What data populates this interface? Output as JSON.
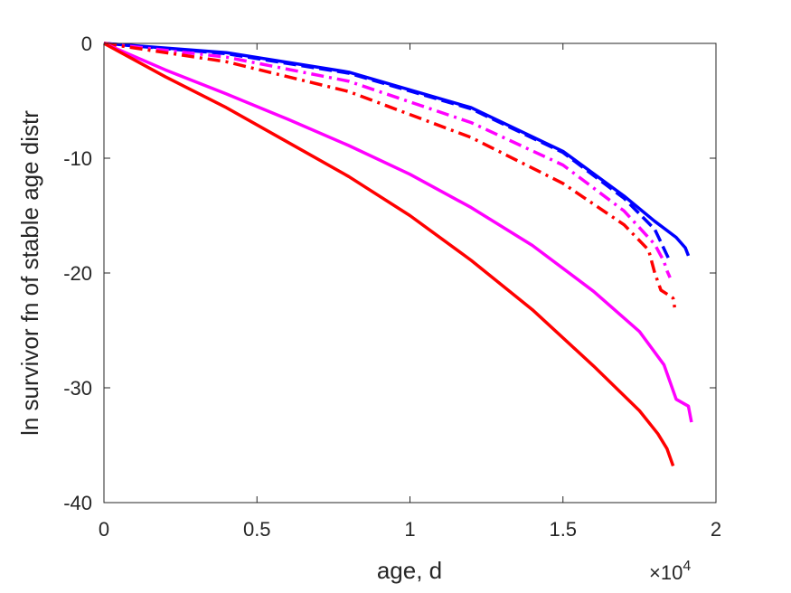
{
  "chart_data": {
    "type": "line",
    "title": "",
    "xlabel": "age, d",
    "ylabel": "ln survivor fn of stable age distr",
    "xlim": [
      0,
      20000
    ],
    "ylim": [
      -40,
      0
    ],
    "x_exponent_label": {
      "base": "×10",
      "exp": "4"
    },
    "x_ticks": [
      {
        "value": 0,
        "label": "0"
      },
      {
        "value": 5000,
        "label": "0.5"
      },
      {
        "value": 10000,
        "label": "1"
      },
      {
        "value": 15000,
        "label": "1.5"
      },
      {
        "value": 20000,
        "label": "2"
      }
    ],
    "y_ticks": [
      {
        "value": 0,
        "label": "0"
      },
      {
        "value": -10,
        "label": "-10"
      },
      {
        "value": -20,
        "label": "-20"
      },
      {
        "value": -30,
        "label": "-30"
      },
      {
        "value": -40,
        "label": "-40"
      }
    ],
    "grid": false,
    "series": [
      {
        "color": "#0000ff",
        "style": "dashed",
        "x": [
          0,
          4000,
          8000,
          12000,
          15000,
          17000,
          18000,
          18500
        ],
        "y": [
          0,
          -0.9,
          -2.6,
          -5.7,
          -9.5,
          -13.5,
          -16.2,
          -19
        ]
      },
      {
        "color": "#0000ff",
        "style": "solid",
        "x": [
          0,
          4000,
          8000,
          12000,
          15000,
          17000,
          18000,
          18700,
          19000,
          19100
        ],
        "y": [
          0,
          -0.8,
          -2.5,
          -5.6,
          -9.4,
          -13.3,
          -15.5,
          -16.9,
          -17.8,
          -18.5
        ]
      },
      {
        "color": "#ff00ff",
        "style": "dashdot",
        "x": [
          0,
          4000,
          8000,
          12000,
          15000,
          17000,
          18000,
          18300,
          18400,
          18500
        ],
        "y": [
          0,
          -1.2,
          -3.3,
          -6.9,
          -10.6,
          -14.6,
          -17.5,
          -19,
          -19.8,
          -20.4
        ]
      },
      {
        "color": "#ff0000",
        "style": "dashdot",
        "x": [
          0,
          4000,
          8000,
          12000,
          15000,
          17000,
          17800,
          18000,
          18200,
          18500,
          18600,
          18650
        ],
        "y": [
          0,
          -1.6,
          -4.2,
          -8.2,
          -12.2,
          -15.8,
          -18.0,
          -20.0,
          -21.5,
          -22.0,
          -22.2,
          -23.0
        ]
      },
      {
        "color": "#ff00ff",
        "style": "solid",
        "x": [
          0,
          2000,
          4000,
          6000,
          8000,
          10000,
          12000,
          14000,
          16000,
          17500,
          18300,
          18700,
          19100,
          19200
        ],
        "y": [
          0,
          -2.3,
          -4.4,
          -6.6,
          -8.9,
          -11.4,
          -14.3,
          -17.6,
          -21.6,
          -25.1,
          -28.0,
          -31.0,
          -31.6,
          -33.0
        ]
      },
      {
        "color": "#ff0000",
        "style": "solid",
        "x": [
          0,
          2000,
          4000,
          6000,
          8000,
          10000,
          12000,
          14000,
          16000,
          17500,
          18100,
          18400,
          18600
        ],
        "y": [
          0,
          -2.9,
          -5.6,
          -8.6,
          -11.6,
          -15.0,
          -18.9,
          -23.2,
          -28.1,
          -32.0,
          -34.0,
          -35.3,
          -36.8
        ]
      }
    ]
  }
}
